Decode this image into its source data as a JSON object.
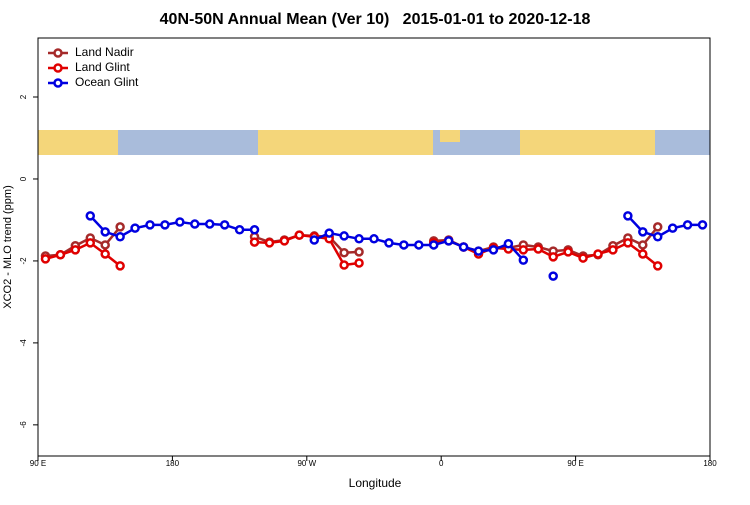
{
  "chart_data": {
    "type": "line",
    "title": "40N-50N Annual Mean (Ver 10)   2015-01-01 to 2020-12-18",
    "xlabel": "Longitude",
    "ylabel": "XCO2 - MLO trend (ppm)",
    "x": [
      95,
      105,
      115,
      125,
      135,
      145,
      155,
      165,
      175,
      185,
      195,
      205,
      215,
      225,
      235,
      245,
      255,
      265,
      275,
      285,
      295,
      305,
      315,
      325,
      335,
      345,
      355,
      365,
      375,
      385,
      395,
      405,
      415,
      425,
      435,
      445,
      455,
      465,
      475,
      485,
      495,
      505,
      515,
      525,
      535
    ],
    "series": [
      {
        "name": "Land Nadir",
        "color": "#a52a2a",
        "values": [
          -1.88,
          -1.85,
          -1.63,
          -1.44,
          -1.61,
          -1.17,
          null,
          null,
          null,
          null,
          null,
          null,
          null,
          null,
          -1.41,
          -1.54,
          -1.49,
          -1.37,
          -1.39,
          -1.41,
          -1.8,
          -1.78,
          null,
          null,
          null,
          null,
          -1.51,
          -1.49,
          -1.66,
          -1.76,
          -1.66,
          -1.68,
          -1.61,
          -1.66,
          -1.76,
          -1.73,
          -1.88,
          -1.85,
          -1.63,
          -1.44,
          -1.61,
          -1.17,
          null,
          null,
          null
        ]
      },
      {
        "name": "Land Glint",
        "color": "#e00000",
        "values": [
          -1.95,
          -1.85,
          -1.73,
          -1.56,
          -1.83,
          -2.12,
          null,
          null,
          null,
          null,
          null,
          null,
          null,
          null,
          -1.54,
          -1.56,
          -1.51,
          -1.37,
          -1.41,
          -1.46,
          -2.1,
          -2.05,
          null,
          null,
          null,
          null,
          -1.56,
          -1.51,
          -1.66,
          -1.83,
          -1.68,
          -1.71,
          -1.73,
          -1.71,
          -1.9,
          -1.78,
          -1.93,
          -1.83,
          -1.73,
          -1.56,
          -1.83,
          -2.12,
          null,
          null,
          null
        ]
      },
      {
        "name": "Ocean Glint",
        "color": "#0000e0",
        "values": [
          null,
          null,
          null,
          -0.9,
          -1.29,
          -1.41,
          -1.2,
          -1.12,
          -1.12,
          -1.05,
          -1.1,
          -1.1,
          -1.12,
          -1.24,
          -1.24,
          null,
          null,
          null,
          -1.49,
          -1.32,
          -1.39,
          -1.46,
          -1.46,
          -1.56,
          -1.61,
          -1.61,
          -1.61,
          -1.51,
          -1.66,
          -1.76,
          -1.73,
          -1.58,
          -1.98,
          null,
          -2.37,
          null,
          null,
          null,
          null,
          -0.9,
          -1.29,
          -1.41,
          -1.2,
          -1.12,
          -1.12
        ]
      }
    ],
    "xlim": [
      90,
      540
    ],
    "xticks": [
      {
        "value": 90,
        "label": "90 E"
      },
      180,
      {
        "value": 270,
        "label": "90 W"
      },
      {
        "value": 360,
        "label": "0"
      },
      {
        "value": 450,
        "label": "90 E"
      },
      {
        "value": 540,
        "label": "180"
      }
    ],
    "ylim": [
      -6.76,
      3.44
    ],
    "yticks": [
      -6,
      -4,
      -2,
      0,
      2
    ],
    "legend": "top-left"
  }
}
